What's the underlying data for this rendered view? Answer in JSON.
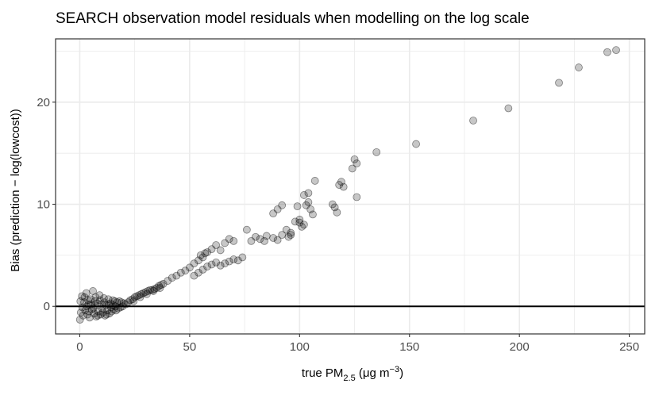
{
  "chart_data": {
    "type": "scatter",
    "title": "SEARCH observation model residuals when modelling on the log scale",
    "xlabel": {
      "prefix": "true PM",
      "subscript": "2.5",
      "unit_open": " (μg m",
      "unit_superscript": "−3",
      "unit_close": ")"
    },
    "ylabel": "Bias (prediction − log(lowcost))",
    "xlim": [
      -11,
      257
    ],
    "ylim": [
      -2.7,
      26.2
    ],
    "x_ticks": [
      0,
      50,
      100,
      150,
      200,
      250
    ],
    "x_tick_labels": [
      "0",
      "50",
      "100",
      "150",
      "200",
      "250"
    ],
    "y_ticks": [
      0,
      10,
      20
    ],
    "y_tick_labels": [
      "0",
      "10",
      "20"
    ],
    "grid": true,
    "reference_line_y": 0,
    "point_color": "#000000",
    "point_opacity": 0.22,
    "colors": {
      "background": "#ffffff",
      "grid": "#ebebeb",
      "panel_border": "#333333",
      "reference_line": "#000000"
    },
    "points": [
      [
        0.1,
        -1.3
      ],
      [
        0.5,
        -0.6
      ],
      [
        1.0,
        1.0
      ],
      [
        1.5,
        -0.9
      ],
      [
        2.0,
        0.4
      ],
      [
        2.5,
        -0.4
      ],
      [
        3.0,
        1.3
      ],
      [
        3.5,
        -0.8
      ],
      [
        4.0,
        0.2
      ],
      [
        4.5,
        -1.1
      ],
      [
        5.0,
        0.7
      ],
      [
        5.5,
        -0.3
      ],
      [
        6.0,
        1.5
      ],
      [
        6.5,
        -0.7
      ],
      [
        7.0,
        0.5
      ],
      [
        7.5,
        -1.0
      ],
      [
        8.0,
        0.3
      ],
      [
        8.5,
        -0.5
      ],
      [
        9.0,
        1.1
      ],
      [
        9.5,
        -0.8
      ],
      [
        10.0,
        0.2
      ],
      [
        10.5,
        -0.6
      ],
      [
        11.0,
        0.8
      ],
      [
        11.5,
        -0.9
      ],
      [
        12.0,
        0.1
      ],
      [
        12.5,
        -0.4
      ],
      [
        13.0,
        0.7
      ],
      [
        13.5,
        -0.7
      ],
      [
        14.0,
        0.3
      ],
      [
        14.5,
        -0.5
      ],
      [
        15.0,
        0.6
      ],
      [
        15.5,
        -0.3
      ],
      [
        16.0,
        0.5
      ],
      [
        16.5,
        -0.4
      ],
      [
        17.0,
        0.4
      ],
      [
        17.5,
        -0.2
      ],
      [
        18.0,
        0.5
      ],
      [
        18.5,
        -0.1
      ],
      [
        19.0,
        0.4
      ],
      [
        19.5,
        0.0
      ],
      [
        20.0,
        0.3
      ],
      [
        0.3,
        0.5
      ],
      [
        1.2,
        -0.1
      ],
      [
        2.2,
        0.9
      ],
      [
        3.2,
        0.0
      ],
      [
        4.2,
        -0.5
      ],
      [
        5.2,
        0.2
      ],
      [
        6.2,
        -0.2
      ],
      [
        7.2,
        0.9
      ],
      [
        8.2,
        -0.9
      ],
      [
        9.2,
        0.6
      ],
      [
        10.2,
        -0.2
      ],
      [
        11.2,
        0.4
      ],
      [
        12.2,
        -0.8
      ],
      [
        13.2,
        0.2
      ],
      [
        14.2,
        -0.1
      ],
      [
        15.2,
        0.1
      ],
      [
        16.2,
        0.0
      ],
      [
        3.8,
        0.6
      ],
      [
        6.8,
        0.1
      ],
      [
        21.0,
        0.2
      ],
      [
        22.0,
        0.4
      ],
      [
        23.0,
        0.6
      ],
      [
        24.0,
        0.7
      ],
      [
        25.0,
        0.9
      ],
      [
        26.0,
        1.0
      ],
      [
        27.0,
        1.1
      ],
      [
        28.0,
        1.2
      ],
      [
        29.0,
        1.3
      ],
      [
        30.0,
        1.4
      ],
      [
        31.0,
        1.5
      ],
      [
        32.0,
        1.6
      ],
      [
        33.0,
        1.6
      ],
      [
        34.0,
        1.7
      ],
      [
        35.0,
        1.8
      ],
      [
        36.0,
        2.0
      ],
      [
        37.0,
        2.1
      ],
      [
        38.0,
        2.2
      ],
      [
        24.5,
        0.5
      ],
      [
        27.5,
        0.9
      ],
      [
        30.5,
        1.2
      ],
      [
        33.5,
        1.5
      ],
      [
        36.5,
        1.8
      ],
      [
        40,
        2.5
      ],
      [
        42,
        2.8
      ],
      [
        44,
        3.0
      ],
      [
        46,
        3.3
      ],
      [
        48,
        3.5
      ],
      [
        50,
        3.8
      ],
      [
        52,
        4.2
      ],
      [
        54,
        4.5
      ],
      [
        56,
        4.8
      ],
      [
        58,
        5.3
      ],
      [
        60,
        5.6
      ],
      [
        62,
        6.0
      ],
      [
        64,
        5.5
      ],
      [
        66,
        6.2
      ],
      [
        52,
        3.0
      ],
      [
        54,
        3.3
      ],
      [
        56,
        3.6
      ],
      [
        58,
        3.9
      ],
      [
        60,
        4.1
      ],
      [
        62,
        4.3
      ],
      [
        64,
        4.0
      ],
      [
        66,
        4.2
      ],
      [
        68,
        4.4
      ],
      [
        70,
        4.6
      ],
      [
        72,
        4.5
      ],
      [
        74,
        4.8
      ],
      [
        55,
        5.0
      ],
      [
        57,
        5.2
      ],
      [
        68,
        6.6
      ],
      [
        70,
        6.4
      ],
      [
        76,
        7.5
      ],
      [
        78,
        6.4
      ],
      [
        80,
        6.8
      ],
      [
        82,
        6.6
      ],
      [
        84,
        6.4
      ],
      [
        85,
        6.9
      ],
      [
        88,
        6.7
      ],
      [
        90,
        6.5
      ],
      [
        92,
        7.0
      ],
      [
        94,
        7.5
      ],
      [
        95,
        6.8
      ],
      [
        96,
        7.2
      ],
      [
        98,
        8.3
      ],
      [
        100,
        8.5
      ],
      [
        101,
        7.8
      ],
      [
        102,
        8.0
      ],
      [
        103,
        9.9
      ],
      [
        104,
        10.2
      ],
      [
        105,
        9.5
      ],
      [
        88,
        9.1
      ],
      [
        90,
        9.5
      ],
      [
        92,
        9.9
      ],
      [
        96,
        7.0
      ],
      [
        99,
        9.8
      ],
      [
        100,
        8.2
      ],
      [
        102,
        10.9
      ],
      [
        104,
        11.1
      ],
      [
        106,
        9.0
      ],
      [
        107,
        12.3
      ],
      [
        115,
        10.0
      ],
      [
        116,
        9.7
      ],
      [
        117,
        9.2
      ],
      [
        118,
        11.9
      ],
      [
        119,
        12.2
      ],
      [
        120,
        11.7
      ],
      [
        124,
        13.5
      ],
      [
        125,
        14.4
      ],
      [
        126,
        14.0
      ],
      [
        126,
        10.7
      ],
      [
        135,
        15.1
      ],
      [
        153,
        15.9
      ],
      [
        179,
        18.2
      ],
      [
        195,
        19.4
      ],
      [
        218,
        21.9
      ],
      [
        227,
        23.4
      ],
      [
        240,
        24.9
      ],
      [
        244,
        25.1
      ]
    ]
  }
}
